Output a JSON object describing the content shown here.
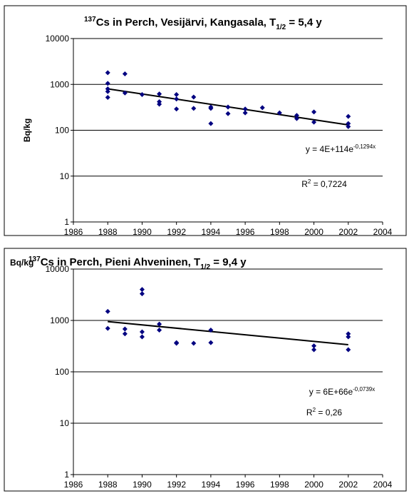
{
  "chart_data": [
    {
      "type": "scatter",
      "title": [
        "137",
        "Cs in Perch, Vesijärvi, Kangasala, T",
        "1/2",
        " = 5,4 y"
      ],
      "y_label": "Bq/kg",
      "log_y": true,
      "ylim": [
        1,
        10000
      ],
      "yticks": [
        1,
        10,
        100,
        1000,
        10000
      ],
      "xlim": [
        1986,
        2004
      ],
      "xticks": [
        1986,
        1988,
        1990,
        1992,
        1994,
        1996,
        1998,
        2000,
        2002,
        2004
      ],
      "grid": true,
      "series": [
        {
          "color": "#000080",
          "x": [
            1988,
            1988,
            1988,
            1988,
            1988,
            1989,
            1989,
            1990,
            1991,
            1991,
            1991,
            1992,
            1992,
            1992,
            1993,
            1993,
            1994,
            1994,
            1994,
            1995,
            1995,
            1996,
            1996,
            1997,
            1998,
            1999,
            1999,
            2000,
            2000,
            2002,
            2002,
            2002
          ],
          "values": [
            1800,
            1050,
            800,
            700,
            520,
            1700,
            650,
            600,
            620,
            420,
            370,
            600,
            480,
            290,
            530,
            300,
            320,
            300,
            140,
            320,
            230,
            290,
            240,
            310,
            240,
            210,
            180,
            250,
            150,
            200,
            140,
            120
          ]
        }
      ],
      "trendline": {
        "color": "#000000",
        "x": [
          1988,
          2002
        ],
        "values": [
          800,
          131
        ]
      },
      "equation": [
        "y = 4E+114e",
        "-0,1294x"
      ],
      "r_squared": [
        "R",
        "2",
        " = 0,7224"
      ]
    },
    {
      "type": "scatter",
      "title": [
        "137",
        "Cs in Perch, Pieni Ahveninen, T",
        "1/2",
        " = 9,4 y"
      ],
      "y_label": "Bq/kg",
      "log_y": true,
      "ylim": [
        1,
        10000
      ],
      "yticks": [
        1,
        10,
        100,
        1000,
        10000
      ],
      "xlim": [
        1986,
        2004
      ],
      "xticks": [
        1986,
        1988,
        1990,
        1992,
        1994,
        1996,
        1998,
        2000,
        2002,
        2004
      ],
      "grid": true,
      "series": [
        {
          "color": "#000080",
          "x": [
            1988,
            1988,
            1989,
            1989,
            1990,
            1990,
            1990,
            1990,
            1991,
            1991,
            1992,
            1992,
            1993,
            1994,
            1994,
            2000,
            2000,
            2002,
            2002,
            2002
          ],
          "values": [
            1500,
            700,
            680,
            550,
            4000,
            3300,
            600,
            480,
            850,
            650,
            370,
            360,
            360,
            650,
            370,
            320,
            270,
            550,
            480,
            270
          ]
        }
      ],
      "trendline": {
        "color": "#000000",
        "x": [
          1988,
          2002
        ],
        "values": [
          950,
          337
        ]
      },
      "equation": [
        "y = 6E+66e",
        "-0,0739x"
      ],
      "r_squared": [
        "R",
        "2",
        " = 0,26"
      ]
    }
  ]
}
